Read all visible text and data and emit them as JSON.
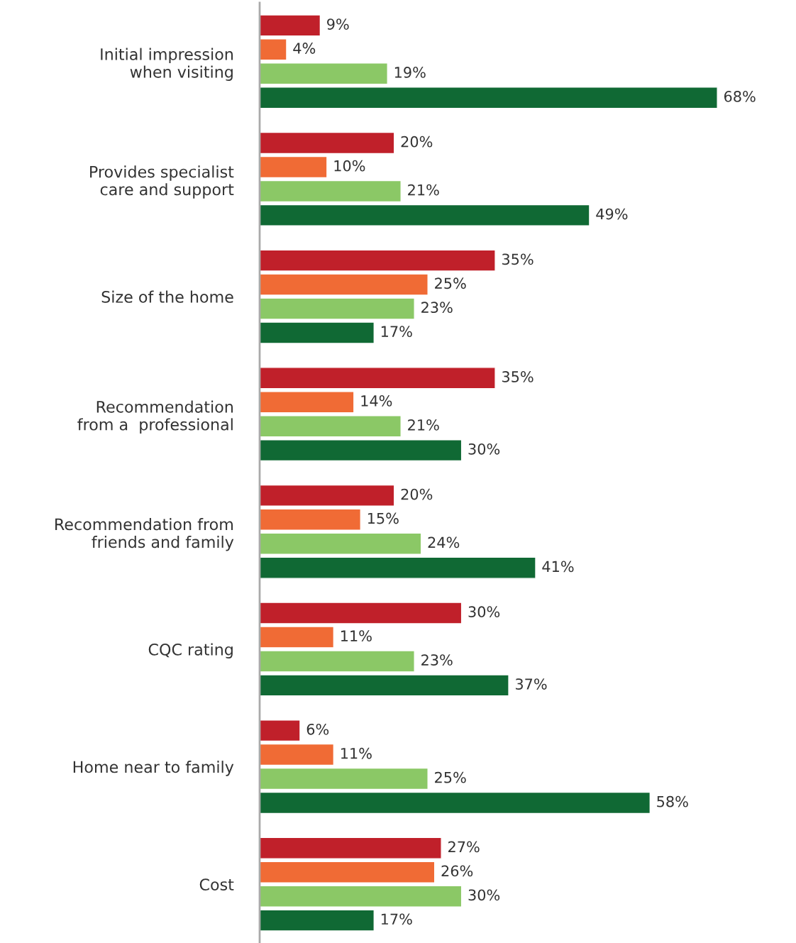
{
  "chart_data": {
    "type": "bar",
    "orientation": "horizontal",
    "categories": [
      "Initial impression\nwhen visiting",
      "Provides specialist\ncare and support",
      "Size of the home",
      "Recommendation\nfrom a  professional",
      "Recommendation from\nfriends and family",
      "CQC rating",
      "Home near to family",
      "Cost"
    ],
    "tick_labels": "y",
    "series": [
      {
        "color": "#c0202a",
        "values": [
          9,
          20,
          35,
          35,
          20,
          30,
          6,
          27
        ],
        "value_labels": [
          "9%",
          "20%",
          "35%",
          "35%",
          "20%",
          "30%",
          "6%",
          "27%"
        ]
      },
      {
        "color": "#f06b35",
        "values": [
          4,
          10,
          25,
          14,
          15,
          11,
          11,
          26
        ],
        "value_labels": [
          "4%",
          "10%",
          "25%",
          "14%",
          "15%",
          "11%",
          "11%",
          "26%"
        ]
      },
      {
        "color": "#8bc866",
        "values": [
          19,
          21,
          23,
          21,
          24,
          23,
          25,
          30
        ],
        "value_labels": [
          "19%",
          "21%",
          "23%",
          "21%",
          "24%",
          "23%",
          "25%",
          "30%"
        ]
      },
      {
        "color": "#106934",
        "values": [
          68,
          49,
          17,
          30,
          41,
          37,
          58,
          17
        ],
        "value_labels": [
          "68%",
          "49%",
          "17%",
          "30%",
          "41%",
          "37%",
          "58%",
          "17%"
        ]
      }
    ]
  }
}
